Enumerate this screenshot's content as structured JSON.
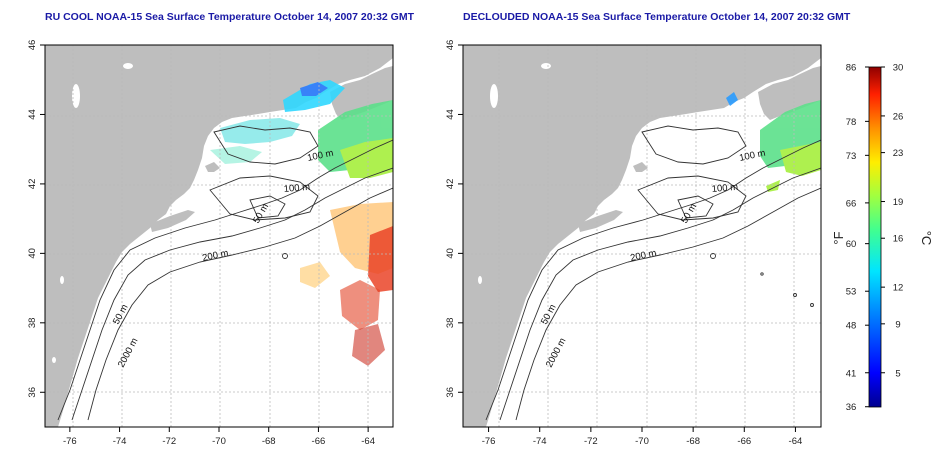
{
  "maps": [
    {
      "title": "RU COOL NOAA-15 Sea Surface Temperature October 14, 2007 20:32 GMT",
      "contour_labels": [
        "100 m",
        "100 m",
        "50 m",
        "200 m",
        "50 m",
        "2000 m"
      ]
    },
    {
      "title": "DECLOUDED NOAA-15 Sea Surface Temperature October 14, 2007 20:32 GMT",
      "contour_labels": [
        "100 m",
        "100 m",
        "50 m",
        "200 m",
        "50 m",
        "2000 m"
      ]
    }
  ],
  "axes": {
    "lon_ticks": [
      "-76",
      "-74",
      "-72",
      "-70",
      "-68",
      "-66",
      "-64"
    ],
    "lat_ticks": [
      "36",
      "38",
      "40",
      "42",
      "44",
      "46"
    ],
    "lon_range": [
      -77,
      -63
    ],
    "lat_range": [
      35,
      46
    ]
  },
  "colorbar": {
    "f_ticks": [
      "86",
      "78",
      "73",
      "66",
      "60",
      "53",
      "48",
      "41",
      "36"
    ],
    "c_ticks": [
      "30",
      "26",
      "23",
      "19",
      "16",
      "12",
      "9",
      "5"
    ],
    "f_unit": "°F",
    "c_unit": "°C",
    "range_c": [
      2.2,
      30
    ]
  },
  "colors": {
    "land": "#bebebe",
    "ocean": "#ffffff",
    "title": "#1a1aa6",
    "grid": "#bbbbbb"
  }
}
